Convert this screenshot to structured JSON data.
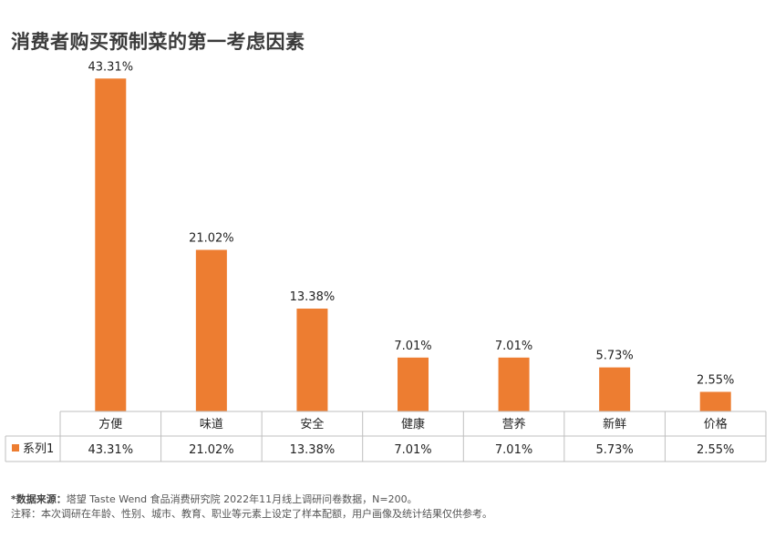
{
  "title": "消费者购买预制菜的第一考虑因素",
  "source_label": "*数据来源：",
  "source_text": "塔望 Taste Wend 食品消费研究院 2022年11月线上调研问卷数据，N=200。",
  "note_text": "注释：本次调研在年龄、性别、城市、教育、职业等元素上设定了样本配额，用户画像及统计结果仅供参考。",
  "colors": {
    "bar": "#ED7D31",
    "grid": "#BFBFBF",
    "label": "#222222"
  },
  "chart_data": {
    "type": "bar",
    "title": "消费者购买预制菜的第一考虑因素",
    "categories": [
      "方便",
      "味道",
      "安全",
      "健康",
      "营养",
      "新鲜",
      "价格"
    ],
    "series": [
      {
        "name": "系列1",
        "values": [
          43.31,
          21.02,
          13.38,
          7.01,
          7.01,
          5.73,
          2.55
        ],
        "labels": [
          "43.31%",
          "21.02%",
          "13.38%",
          "7.01%",
          "7.01%",
          "5.73%",
          "2.55%"
        ]
      }
    ],
    "ylim": [
      0,
      45
    ],
    "xlabel": "",
    "ylabel": "",
    "grid": false,
    "data_table": true
  }
}
